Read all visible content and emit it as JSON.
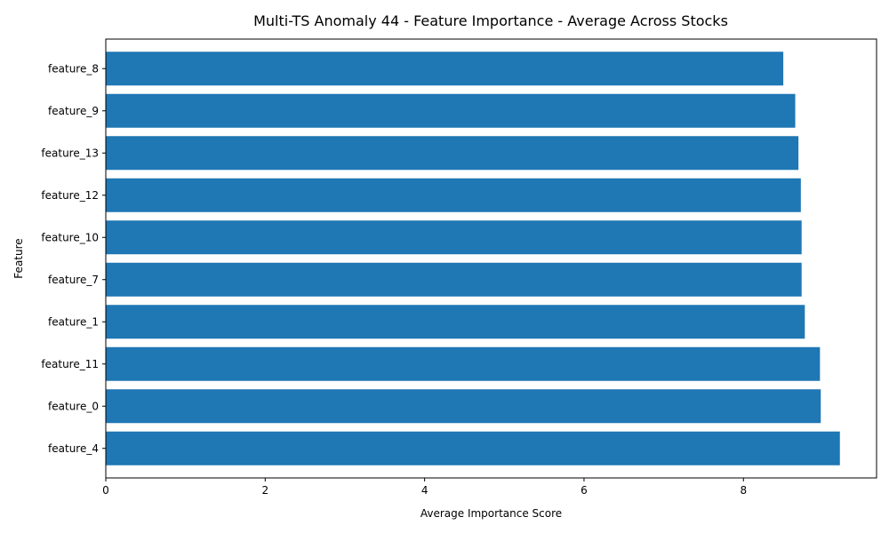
{
  "chart_data": {
    "type": "bar",
    "orientation": "horizontal",
    "title": "Multi-TS Anomaly 44 - Feature Importance - Average Across Stocks",
    "xlabel": "Average Importance Score",
    "ylabel": "Feature",
    "categories": [
      "feature_4",
      "feature_0",
      "feature_11",
      "feature_1",
      "feature_7",
      "feature_10",
      "feature_12",
      "feature_13",
      "feature_9",
      "feature_8"
    ],
    "values": [
      9.21,
      8.97,
      8.96,
      8.77,
      8.73,
      8.73,
      8.72,
      8.69,
      8.65,
      8.5
    ],
    "xlim": [
      0,
      9.67
    ],
    "xticks": [
      0,
      2,
      4,
      6,
      8
    ],
    "grid": false,
    "bar_color": "#1f77b4"
  }
}
